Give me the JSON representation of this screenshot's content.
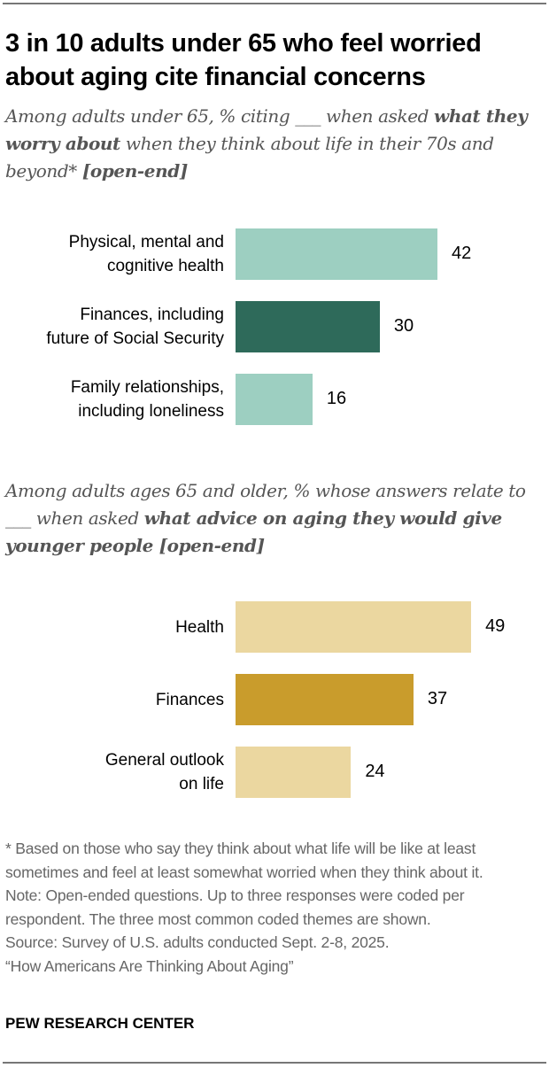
{
  "title": "3 in 10 adults under 65 who feel worried about aging cite financial concerns",
  "subtitle1": {
    "pre": "Among adults under 65, % citing ___ when asked ",
    "bold": "what they worry about",
    "post": " when they think about life in their 70s and beyond* ",
    "bold2": "[open-end]"
  },
  "subtitle2": {
    "pre": "Among adults ages 65 and older, % whose answers relate to ___ when asked ",
    "bold": "what advice on aging they would give younger people [open-end]"
  },
  "chart_data": [
    {
      "type": "bar",
      "orientation": "horizontal",
      "categories": [
        "Physical, mental and cognitive health",
        "Finances, including future of Social Security",
        "Family relationships, including loneliness"
      ],
      "category_lines": [
        [
          "Physical, mental and",
          "cognitive health"
        ],
        [
          "Finances, including",
          "future of Social Security"
        ],
        [
          "Family relationships,",
          "including loneliness"
        ]
      ],
      "values": [
        42,
        30,
        16
      ],
      "colors": [
        "#9dcfc1",
        "#2e6a5a",
        "#9dcfc1"
      ]
    },
    {
      "type": "bar",
      "orientation": "horizontal",
      "categories": [
        "Health",
        "Finances",
        "General outlook on life"
      ],
      "category_lines": [
        [
          "Health"
        ],
        [
          "Finances"
        ],
        [
          "General outlook",
          "on life"
        ]
      ],
      "values": [
        49,
        37,
        24
      ],
      "colors": [
        "#ebd7a0",
        "#c99c2c",
        "#ebd7a0"
      ]
    }
  ],
  "notes": [
    "* Based on those who say they think about what life will be like at least sometimes and feel at least somewhat worried when they think about it.",
    "Note: Open-ended questions. Up to three responses were coded per respondent. The three most common coded themes are shown.",
    "Source: Survey of U.S. adults conducted Sept. 2-8, 2025.",
    "“How Americans Are Thinking About Aging”"
  ],
  "brand": "PEW RESEARCH CENTER"
}
